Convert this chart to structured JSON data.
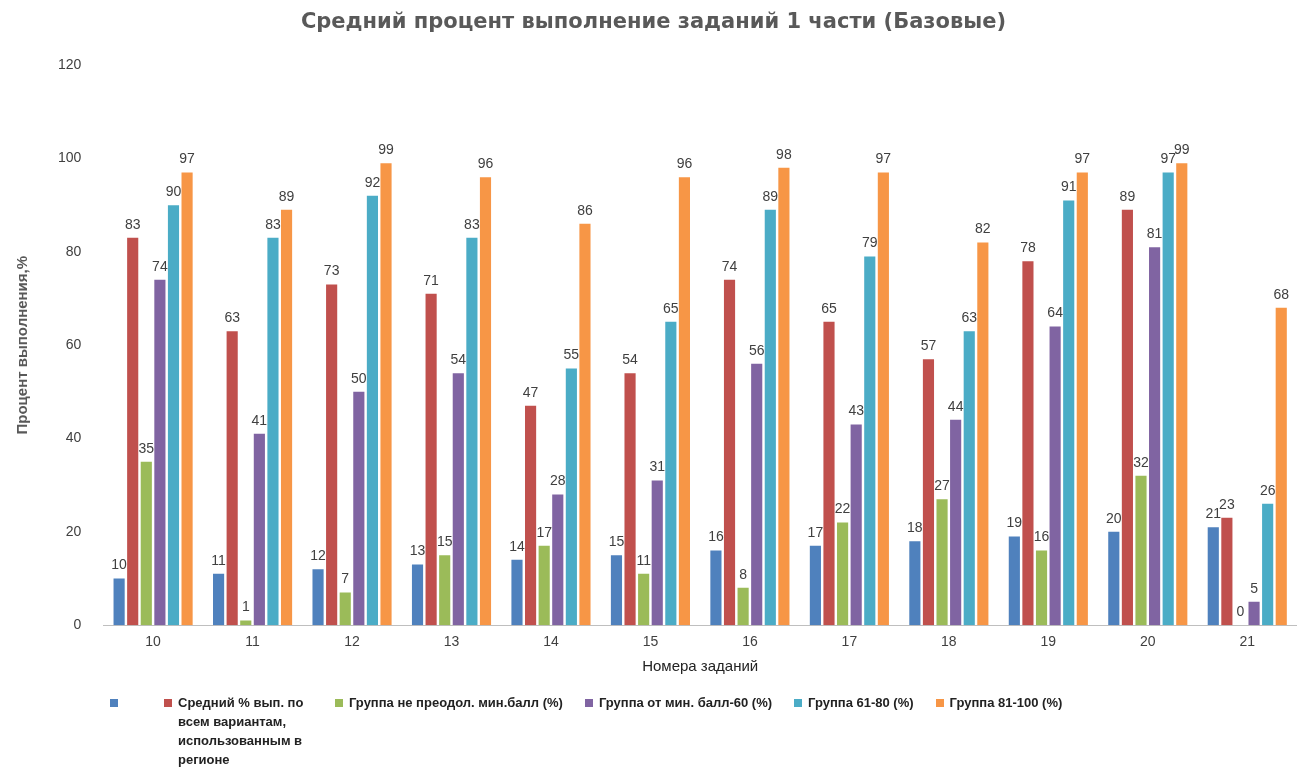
{
  "chart_data": {
    "type": "bar",
    "title": "Средний процент выполнение заданий 1 части (Базовые)",
    "xlabel": "Номера заданий",
    "ylabel": "Процент выполнения,%",
    "categories": [
      "10",
      "11",
      "12",
      "13",
      "14",
      "15",
      "16",
      "17",
      "18",
      "19",
      "20",
      "21"
    ],
    "series": [
      {
        "color": "#4f81bd",
        "values": [
          10,
          11,
          12,
          13,
          14,
          15,
          16,
          17,
          18,
          19,
          20,
          21
        ]
      },
      {
        "name": "Средний % вып. по всем вариантам, использованным в регионе",
        "color": "#c0504d",
        "values": [
          83,
          63,
          73,
          71,
          47,
          54,
          74,
          65,
          57,
          78,
          89,
          23
        ]
      },
      {
        "name": "Группа не преодол. мин.балл (%)",
        "color": "#9bbb59",
        "values": [
          35,
          1,
          7,
          15,
          17,
          11,
          8,
          22,
          27,
          16,
          32,
          0
        ]
      },
      {
        "name": "Группа от мин. балл-60 (%)",
        "color": "#8064a2",
        "values": [
          74,
          41,
          50,
          54,
          28,
          31,
          56,
          43,
          44,
          64,
          81,
          5
        ]
      },
      {
        "name": "Группа 61-80 (%)",
        "color": "#4bacc6",
        "values": [
          90,
          83,
          92,
          83,
          55,
          65,
          89,
          79,
          63,
          91,
          97,
          26
        ]
      },
      {
        "name": "Группа 81-100 (%)",
        "color": "#f79646",
        "values": [
          97,
          89,
          99,
          96,
          86,
          96,
          98,
          97,
          82,
          97,
          99,
          68
        ]
      }
    ],
    "ylim": [
      0,
      120
    ],
    "yticks": [
      0,
      20,
      40,
      60,
      80,
      100,
      120
    ],
    "grid": false,
    "legend": "bottom",
    "data_labels": true
  }
}
